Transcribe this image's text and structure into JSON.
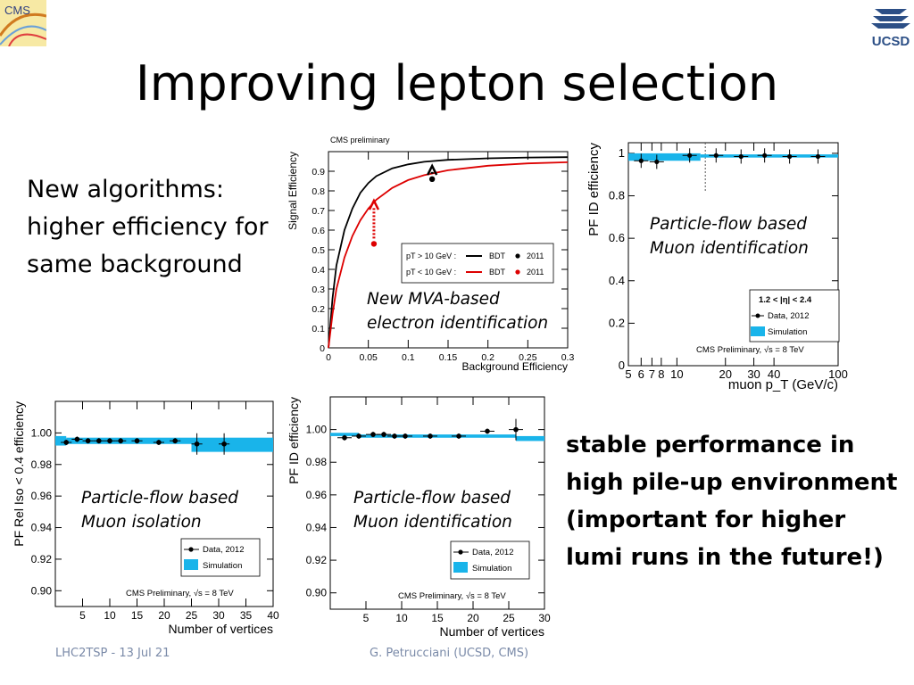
{
  "slide": {
    "title": "Improving lepton selection",
    "left_text": [
      "New algorithms:",
      "higher efficiency for",
      "same background"
    ],
    "right_text": [
      "stable performance in",
      "high pile-up environment",
      "(important for higher",
      "lumi runs in the future!)"
    ],
    "footer_left": "LHC2TSP - 13 Jul 21",
    "footer_right": "G. Petrucciani (UCSD, CMS)",
    "logo_left_text": "CMS",
    "logo_right_text": "UCSD"
  },
  "chart_data": [
    {
      "id": "electron-roc",
      "type": "line",
      "title": "CMS preliminary",
      "caption": [
        "New MVA-based",
        "electron identification"
      ],
      "xlabel": "Background Efficiency",
      "ylabel": "Signal Efficiency",
      "xlim": [
        0,
        0.3
      ],
      "ylim": [
        0,
        1
      ],
      "xticks": [
        "0",
        "0.05",
        "0.1",
        "0.15",
        "0.2",
        "0.25",
        "0.3"
      ],
      "yticks": [
        "0",
        "0.1",
        "0.2",
        "0.3",
        "0.4",
        "0.5",
        "0.6",
        "0.7",
        "0.8",
        "0.9"
      ],
      "legend": {
        "rows": [
          {
            "label": "pT > 10 GeV :",
            "line": "BDT",
            "marker": "2011",
            "color": "#000000"
          },
          {
            "label": "pT < 10 GeV :",
            "line": "BDT",
            "marker": "2011",
            "color": "#dd0000"
          }
        ]
      },
      "series": [
        {
          "name": "pT > 10 GeV : BDT",
          "color": "#000000",
          "x": [
            0,
            0.005,
            0.01,
            0.02,
            0.03,
            0.04,
            0.05,
            0.06,
            0.08,
            0.1,
            0.12,
            0.15,
            0.2,
            0.25,
            0.3
          ],
          "y": [
            0,
            0.25,
            0.42,
            0.6,
            0.71,
            0.79,
            0.84,
            0.875,
            0.915,
            0.935,
            0.948,
            0.958,
            0.966,
            0.97,
            0.972
          ]
        },
        {
          "name": "pT < 10 GeV : BDT",
          "color": "#dd0000",
          "x": [
            0,
            0.005,
            0.01,
            0.02,
            0.03,
            0.04,
            0.05,
            0.06,
            0.08,
            0.1,
            0.12,
            0.15,
            0.2,
            0.25,
            0.3
          ],
          "y": [
            0,
            0.17,
            0.3,
            0.46,
            0.57,
            0.65,
            0.71,
            0.755,
            0.815,
            0.855,
            0.88,
            0.905,
            0.928,
            0.94,
            0.946
          ]
        },
        {
          "name": "pT > 10 GeV : 2011",
          "color": "#000000",
          "marker": true,
          "x": [
            0.13
          ],
          "y": [
            0.86
          ]
        },
        {
          "name": "pT < 10 GeV : 2011",
          "color": "#dd0000",
          "marker": true,
          "x": [
            0.057
          ],
          "y": [
            0.53
          ]
        }
      ]
    },
    {
      "id": "muon-id-pt",
      "type": "scatter",
      "caption": [
        "Particle-flow based",
        "Muon identification"
      ],
      "xlabel": "muon p_T   (GeV/c)",
      "ylabel": "PF ID efficiency",
      "xscale": "log",
      "xlim": [
        5,
        100
      ],
      "ylim": [
        0,
        1.05
      ],
      "xticks": [
        "5",
        "6",
        "7",
        "8",
        "10",
        "20",
        "30",
        "40",
        "100"
      ],
      "yticks": [
        "0",
        "0.2",
        "0.4",
        "0.6",
        "0.8",
        "1"
      ],
      "legend": {
        "header": "1.2 < |η| < 2.4",
        "entries": [
          "Data, 2012",
          "Simulation"
        ]
      },
      "note": "CMS Preliminary, √s = 8 TeV",
      "series": [
        {
          "name": "Data, 2012",
          "x": [
            6,
            7.5,
            12,
            17.5,
            25,
            35,
            50,
            75
          ],
          "y": [
            0.965,
            0.96,
            0.99,
            0.99,
            0.985,
            0.99,
            0.985,
            0.985
          ]
        }
      ]
    },
    {
      "id": "muon-iso-vertices",
      "type": "scatter",
      "caption": [
        "Particle-flow based",
        "Muon isolation"
      ],
      "xlabel": "Number of vertices",
      "ylabel": "PF Rel Iso < 0.4 efficiency",
      "xlim": [
        0,
        40
      ],
      "ylim": [
        0.89,
        1.02
      ],
      "xticks": [
        "5",
        "10",
        "15",
        "20",
        "25",
        "30",
        "35",
        "40"
      ],
      "yticks": [
        "0.90",
        "0.92",
        "0.94",
        "0.96",
        "0.98",
        "1.00"
      ],
      "legend": {
        "entries": [
          "Data, 2012",
          "Simulation"
        ]
      },
      "note": "CMS Preliminary, √s = 8 TeV",
      "series": [
        {
          "name": "Data, 2012",
          "x": [
            2,
            4,
            6,
            8,
            10,
            12,
            15,
            19,
            22,
            26,
            31
          ],
          "y": [
            0.994,
            0.996,
            0.995,
            0.995,
            0.995,
            0.995,
            0.995,
            0.994,
            0.995,
            0.993,
            0.993
          ]
        }
      ]
    },
    {
      "id": "muon-id-vertices",
      "type": "scatter",
      "caption": [
        "Particle-flow based",
        "Muon identification"
      ],
      "xlabel": "Number of vertices",
      "ylabel": "PF ID efficiency",
      "xlim": [
        0,
        30
      ],
      "ylim": [
        0.89,
        1.02
      ],
      "xticks": [
        "5",
        "10",
        "15",
        "20",
        "25",
        "30"
      ],
      "yticks": [
        "0.90",
        "0.92",
        "0.94",
        "0.96",
        "0.98",
        "1.00"
      ],
      "legend": {
        "entries": [
          "Data, 2012",
          "Simulation"
        ]
      },
      "note": "CMS Preliminary, √s = 8 TeV",
      "series": [
        {
          "name": "Data, 2012",
          "x": [
            2,
            4,
            6,
            7.5,
            9,
            10.5,
            14,
            18,
            22,
            26
          ],
          "y": [
            0.995,
            0.996,
            0.997,
            0.997,
            0.996,
            0.996,
            0.996,
            0.996,
            0.999,
            1.0
          ]
        }
      ]
    }
  ]
}
